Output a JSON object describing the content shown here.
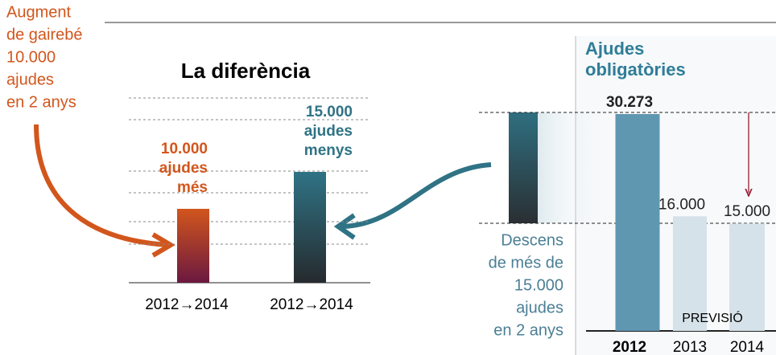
{
  "notes": {
    "increase": [
      "Augment",
      "de gairebé",
      "10.000",
      "ajudes",
      "en 2 anys"
    ],
    "decrease": [
      "Descens",
      "de més de",
      "15.000",
      "ajudes",
      "en 2 anys"
    ]
  },
  "chart_data": [
    {
      "type": "bar",
      "title": "La diferència",
      "categories": [
        "2012→2014",
        "2012→2014"
      ],
      "values": [
        10000,
        15000
      ],
      "value_labels": [
        "10.000",
        "15.000"
      ],
      "label_notes": [
        [
          "ajudes",
          "més"
        ],
        [
          "ajudes",
          "menys"
        ]
      ],
      "colors": [
        "#d2561c",
        "#2f7385"
      ]
    },
    {
      "type": "bar",
      "title": [
        "Ajudes",
        "obligatòries"
      ],
      "categories": [
        "2012",
        "2013",
        "2014"
      ],
      "values": [
        30273,
        16000,
        15000
      ],
      "value_labels": [
        "30.273",
        "16.000",
        "15.000"
      ],
      "colors": [
        "#5f97b1",
        "#d6e2e9",
        "#d6e2e9"
      ],
      "annotation": "PREVISIÓ"
    }
  ]
}
